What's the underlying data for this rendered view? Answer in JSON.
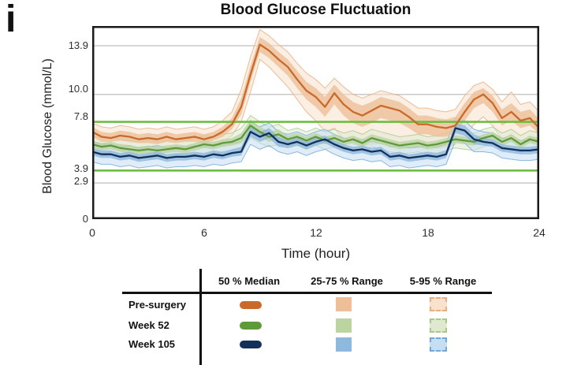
{
  "panel_label": "i",
  "chart_data": {
    "type": "line",
    "title": "Blood Glucose Fluctuation",
    "xlabel": "Time (hour)",
    "ylabel": "Blood Glucose (mmol/L)",
    "xlim": [
      0,
      24
    ],
    "ylim": [
      0,
      15.5
    ],
    "xticks": [
      0,
      6,
      12,
      18,
      24
    ],
    "xtick_labels": [
      "0",
      "6",
      "12",
      "18",
      "24"
    ],
    "yticks": [
      13.9,
      10.0,
      7.8,
      3.9,
      2.9,
      0
    ],
    "ytick_labels": [
      "13.9",
      "10.0",
      "7.8",
      "3.9",
      "2.9",
      "0"
    ],
    "gridlines_y": [
      13.9,
      10.0,
      2.9
    ],
    "grid_color": "#c8c8c8",
    "target_lines_y": [
      7.8,
      3.9
    ],
    "target_line_color": "#6cbd42",
    "axis_color": "#1a1a1a",
    "legend_position": "bottom-table",
    "t_step_hours": 0.5,
    "series": [
      {
        "name": "Pre-surgery",
        "color": "#c96a2b",
        "fill25": "#edbf98",
        "fill95": "#f8e2cd",
        "edge95": "#e9ac7d",
        "median": [
          7.0,
          6.6,
          6.5,
          6.7,
          6.6,
          6.4,
          6.5,
          6.4,
          6.6,
          6.4,
          6.5,
          6.6,
          6.4,
          6.6,
          7.0,
          7.6,
          9.0,
          11.6,
          14.0,
          13.5,
          12.8,
          12.2,
          11.2,
          10.3,
          9.8,
          9.0,
          10.1,
          9.2,
          8.6,
          8.3,
          8.7,
          9.1,
          8.9,
          8.7,
          8.2,
          7.6,
          7.6,
          7.4,
          7.3,
          7.5,
          8.6,
          9.6,
          10.0,
          9.3,
          8.1,
          8.6,
          7.9,
          8.1,
          7.3
        ],
        "q25": [
          6.6,
          6.2,
          6.2,
          6.3,
          6.2,
          6.1,
          6.1,
          6.0,
          6.2,
          6.1,
          6.2,
          6.2,
          6.1,
          6.3,
          6.6,
          7.2,
          8.4,
          11.0,
          13.4,
          12.9,
          12.2,
          11.5,
          10.5,
          9.6,
          9.0,
          8.2,
          9.2,
          8.3,
          7.7,
          7.4,
          7.7,
          8.1,
          7.9,
          7.7,
          7.3,
          6.8,
          6.8,
          6.6,
          6.6,
          6.9,
          7.9,
          8.9,
          9.3,
          8.6,
          7.5,
          7.9,
          7.3,
          7.5,
          6.8
        ],
        "q75": [
          7.4,
          7.0,
          6.9,
          7.1,
          7.0,
          6.8,
          6.9,
          6.8,
          7.0,
          6.8,
          6.9,
          7.0,
          6.8,
          7.0,
          7.4,
          8.1,
          9.7,
          12.3,
          14.6,
          14.1,
          13.4,
          12.8,
          11.9,
          11.0,
          10.5,
          9.8,
          10.8,
          10.0,
          9.4,
          9.1,
          9.4,
          9.8,
          9.6,
          9.4,
          8.9,
          8.3,
          8.3,
          8.1,
          8.0,
          8.2,
          9.3,
          10.2,
          10.5,
          9.9,
          8.8,
          9.3,
          8.6,
          8.8,
          8.0
        ],
        "p5": [
          6.2,
          5.9,
          5.8,
          6.0,
          5.9,
          5.7,
          5.8,
          5.7,
          5.9,
          5.7,
          5.8,
          5.9,
          5.7,
          5.9,
          6.2,
          6.7,
          7.8,
          10.2,
          12.8,
          12.2,
          11.4,
          10.6,
          9.6,
          8.6,
          7.9,
          7.0,
          7.3,
          6.4,
          6.0,
          5.9,
          6.0,
          6.1,
          5.9,
          5.8,
          5.8,
          5.7,
          5.8,
          5.7,
          5.8,
          6.0,
          6.6,
          7.6,
          8.2,
          7.5,
          6.4,
          6.8,
          6.3,
          6.5,
          6.0
        ],
        "p95": [
          7.7,
          7.4,
          7.3,
          7.5,
          7.4,
          7.2,
          7.3,
          7.2,
          7.4,
          7.2,
          7.3,
          7.4,
          7.2,
          7.4,
          7.9,
          8.6,
          10.4,
          13.0,
          15.2,
          14.7,
          14.0,
          13.4,
          12.5,
          11.7,
          11.2,
          10.5,
          11.3,
          10.6,
          10.0,
          9.7,
          10.0,
          10.3,
          10.1,
          9.9,
          9.4,
          8.9,
          8.9,
          8.7,
          8.6,
          8.8,
          9.9,
          10.7,
          11.0,
          10.4,
          9.4,
          10.2,
          9.2,
          9.4,
          8.6
        ]
      },
      {
        "name": "Week 52",
        "color": "#5f9a3a",
        "fill25": "#bcd3a2",
        "fill95": "#dfe9cf",
        "edge95": "#a9c987",
        "median": [
          6.0,
          5.8,
          5.9,
          5.7,
          5.6,
          5.5,
          5.6,
          5.5,
          5.6,
          5.7,
          5.6,
          5.8,
          6.0,
          5.9,
          6.1,
          6.2,
          6.5,
          7.5,
          7.0,
          6.6,
          6.8,
          6.4,
          6.6,
          6.3,
          6.6,
          6.3,
          6.5,
          6.2,
          6.4,
          6.1,
          6.5,
          6.3,
          6.1,
          5.9,
          6.0,
          6.1,
          5.9,
          6.0,
          6.2,
          6.4,
          6.3,
          6.2,
          6.5,
          6.7,
          6.2,
          6.5,
          6.0,
          6.4,
          6.2
        ],
        "q25": [
          5.7,
          5.5,
          5.6,
          5.4,
          5.3,
          5.2,
          5.3,
          5.2,
          5.3,
          5.4,
          5.3,
          5.5,
          5.7,
          5.6,
          5.8,
          5.9,
          6.1,
          7.0,
          6.6,
          6.2,
          6.4,
          6.1,
          6.3,
          6.0,
          6.3,
          6.0,
          6.2,
          5.9,
          6.1,
          5.8,
          6.2,
          6.0,
          5.8,
          5.6,
          5.7,
          5.8,
          5.6,
          5.7,
          5.9,
          6.1,
          6.0,
          5.9,
          6.2,
          6.4,
          5.9,
          6.2,
          5.7,
          6.1,
          5.9
        ],
        "q75": [
          6.3,
          6.1,
          6.2,
          6.0,
          5.9,
          5.8,
          5.9,
          5.8,
          5.9,
          6.0,
          5.9,
          6.1,
          6.3,
          6.2,
          6.4,
          6.5,
          6.9,
          8.0,
          7.4,
          7.0,
          7.2,
          6.7,
          6.9,
          6.6,
          6.9,
          6.6,
          6.8,
          6.5,
          6.7,
          6.4,
          6.8,
          6.6,
          6.4,
          6.2,
          6.3,
          6.4,
          6.2,
          6.3,
          6.5,
          6.7,
          6.6,
          6.5,
          6.8,
          7.0,
          6.5,
          6.8,
          6.3,
          6.7,
          6.5
        ],
        "p5": [
          5.3,
          5.1,
          5.2,
          5.0,
          4.9,
          4.8,
          4.9,
          4.8,
          4.9,
          5.0,
          4.9,
          5.1,
          5.3,
          5.2,
          5.4,
          5.5,
          5.7,
          6.5,
          6.1,
          5.8,
          6.0,
          5.7,
          5.9,
          5.6,
          5.9,
          5.6,
          5.8,
          5.5,
          5.7,
          5.4,
          5.8,
          5.6,
          5.4,
          5.2,
          5.3,
          5.4,
          5.2,
          5.3,
          5.5,
          5.7,
          5.6,
          5.5,
          5.8,
          6.0,
          5.5,
          5.8,
          5.3,
          5.7,
          5.5
        ],
        "p95": [
          6.7,
          6.5,
          6.6,
          6.4,
          6.3,
          6.2,
          6.3,
          6.2,
          6.3,
          6.4,
          6.3,
          6.5,
          6.7,
          6.6,
          6.8,
          6.9,
          7.3,
          8.3,
          7.8,
          7.4,
          7.6,
          7.1,
          7.3,
          7.0,
          7.3,
          7.0,
          7.2,
          6.9,
          7.1,
          6.8,
          7.2,
          7.0,
          6.8,
          6.6,
          6.7,
          6.8,
          6.6,
          6.7,
          6.9,
          7.1,
          7.0,
          6.9,
          7.2,
          7.4,
          6.9,
          7.2,
          6.7,
          7.1,
          6.9
        ]
      },
      {
        "name": "Week 105",
        "color": "#14305a",
        "fill25": "#8fb8dd",
        "fill95": "#c6def2",
        "edge95": "#6ea9dc",
        "median": [
          5.4,
          5.2,
          5.2,
          5.0,
          5.1,
          4.9,
          5.0,
          5.1,
          4.9,
          5.0,
          5.0,
          5.1,
          5.0,
          5.2,
          5.1,
          5.3,
          5.4,
          7.0,
          6.6,
          6.9,
          6.2,
          6.0,
          6.2,
          5.9,
          6.2,
          6.4,
          6.0,
          5.7,
          5.5,
          5.6,
          5.4,
          5.5,
          5.0,
          5.1,
          4.9,
          5.0,
          5.1,
          5.0,
          5.2,
          7.3,
          7.1,
          6.4,
          6.2,
          6.1,
          5.7,
          5.6,
          5.5,
          5.5,
          5.6
        ],
        "q25": [
          5.1,
          4.9,
          4.9,
          4.7,
          4.8,
          4.6,
          4.7,
          4.8,
          4.6,
          4.7,
          4.7,
          4.8,
          4.7,
          4.9,
          4.8,
          5.0,
          5.1,
          6.6,
          6.2,
          6.5,
          5.8,
          5.7,
          5.9,
          5.6,
          5.9,
          6.1,
          5.7,
          5.4,
          5.2,
          5.3,
          5.1,
          5.2,
          4.7,
          4.8,
          4.6,
          4.7,
          4.8,
          4.7,
          4.9,
          6.9,
          6.7,
          6.0,
          5.9,
          5.8,
          5.4,
          5.3,
          5.2,
          5.2,
          5.3
        ],
        "q75": [
          5.7,
          5.5,
          5.5,
          5.3,
          5.4,
          5.2,
          5.3,
          5.4,
          5.2,
          5.3,
          5.3,
          5.4,
          5.3,
          5.5,
          5.4,
          5.6,
          5.8,
          7.4,
          7.0,
          7.3,
          6.6,
          6.3,
          6.5,
          6.2,
          6.5,
          6.7,
          6.3,
          6.0,
          5.8,
          5.9,
          5.7,
          5.8,
          5.3,
          5.4,
          5.2,
          5.3,
          5.4,
          5.3,
          5.5,
          7.7,
          7.5,
          6.8,
          6.5,
          6.4,
          6.0,
          5.9,
          5.8,
          5.8,
          5.9
        ],
        "p5": [
          4.6,
          4.4,
          4.4,
          4.2,
          4.3,
          4.1,
          4.2,
          4.3,
          4.1,
          4.2,
          4.2,
          4.3,
          4.2,
          4.4,
          4.3,
          4.5,
          4.6,
          6.0,
          5.6,
          5.9,
          5.4,
          5.2,
          5.4,
          5.1,
          5.4,
          5.6,
          5.2,
          4.9,
          4.7,
          4.8,
          4.6,
          4.7,
          4.2,
          4.3,
          4.1,
          4.2,
          4.3,
          4.2,
          4.4,
          6.3,
          6.1,
          5.4,
          5.4,
          5.3,
          4.9,
          4.8,
          4.7,
          4.7,
          4.8
        ],
        "p95": [
          6.2,
          6.0,
          6.0,
          5.8,
          5.9,
          5.7,
          5.8,
          5.9,
          5.7,
          5.8,
          5.8,
          5.9,
          5.8,
          6.0,
          5.9,
          6.1,
          6.2,
          7.8,
          7.4,
          7.7,
          7.0,
          6.8,
          7.0,
          6.7,
          7.0,
          7.2,
          6.8,
          6.5,
          6.3,
          6.4,
          6.2,
          6.3,
          5.8,
          5.9,
          5.7,
          5.8,
          5.9,
          5.8,
          6.0,
          8.1,
          7.9,
          7.2,
          7.0,
          6.9,
          6.5,
          6.4,
          6.3,
          6.3,
          6.4
        ]
      }
    ]
  },
  "legend": {
    "columns": [
      "50 % Median",
      "25-75 % Range",
      "5-95 % Range"
    ]
  }
}
